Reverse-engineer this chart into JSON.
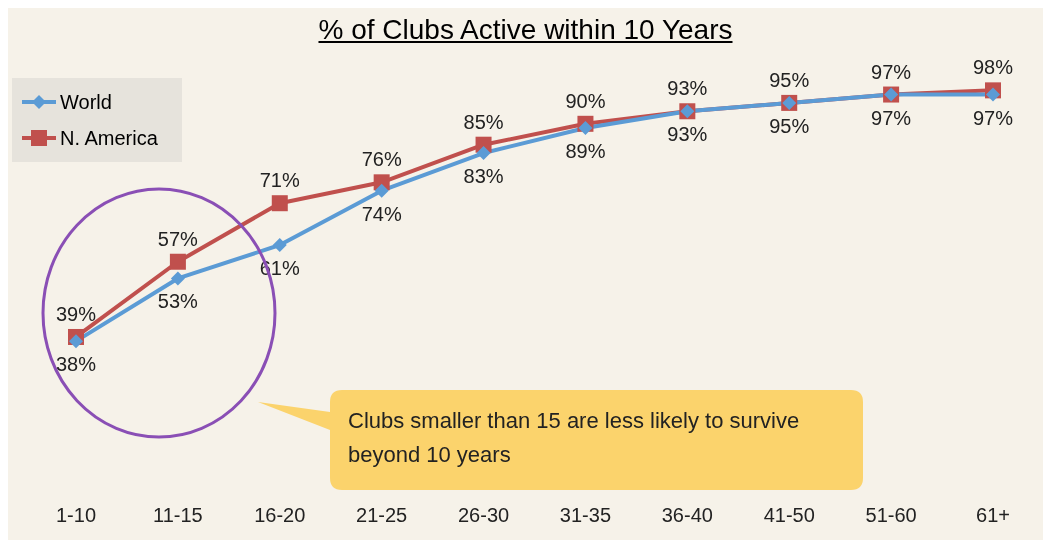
{
  "chart_data": {
    "type": "line",
    "title": "% of Clubs Active within 10 Years",
    "categories": [
      "1-10",
      "11-15",
      "16-20",
      "21-25",
      "26-30",
      "31-35",
      "36-40",
      "41-50",
      "51-60",
      "61+"
    ],
    "series": [
      {
        "name": "World",
        "color": "#5b9bd5",
        "marker": "diamond",
        "values": [
          38,
          53,
          61,
          74,
          83,
          89,
          93,
          95,
          97,
          97
        ],
        "value_labels": [
          "38%",
          "53%",
          "61%",
          "74%",
          "83%",
          "89%",
          "93%",
          "95%",
          "97%",
          "97%"
        ]
      },
      {
        "name": "N. America",
        "color": "#c0504d",
        "marker": "square",
        "values": [
          39,
          57,
          71,
          76,
          85,
          90,
          93,
          95,
          97,
          98
        ],
        "value_labels": [
          "39%",
          "57%",
          "71%",
          "76%",
          "85%",
          "90%",
          "93%",
          "95%",
          "97%",
          "98%"
        ]
      }
    ],
    "tick_labels": "x",
    "legend": "top left",
    "annotations": [
      "Clubs smaller than 15 are less likely to survive beyond 10 years"
    ]
  }
}
